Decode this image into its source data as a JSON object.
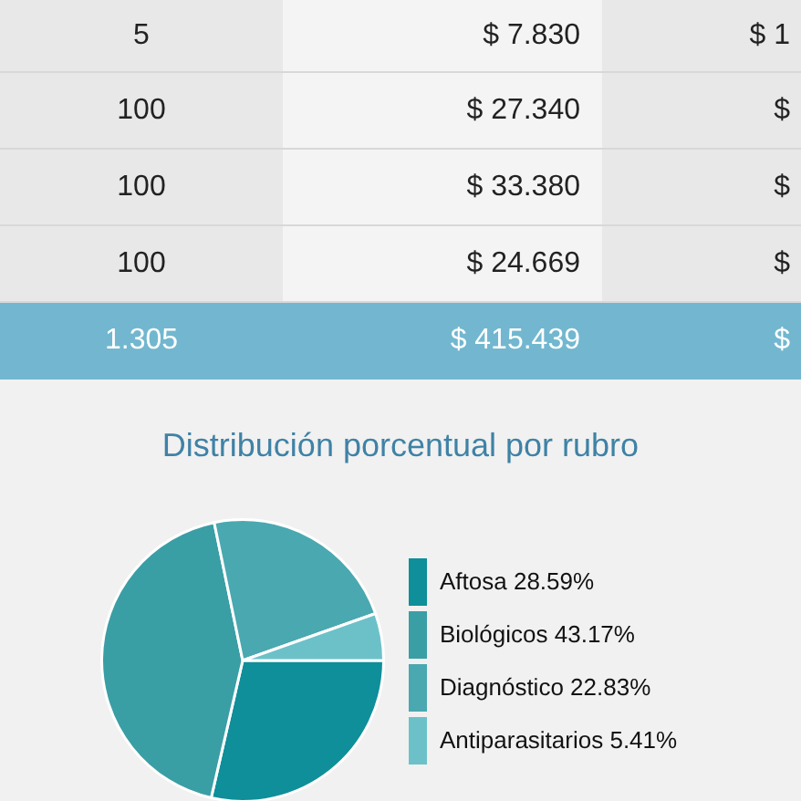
{
  "chart_data": [
    {
      "type": "other",
      "annotations": [
        "5",
        "$ 7.830",
        "$ 1",
        "100",
        "$ 27.340",
        "$",
        "100",
        "$ 33.380",
        "$",
        "100",
        "$ 24.669",
        "$",
        "1.305",
        "$ 415.439",
        "$"
      ]
    },
    {
      "type": "pie",
      "title": "Distribución porcentual por rubro",
      "categories": [
        "Aftosa 28.59%",
        "Biológicos 43.17%",
        "Diagnóstico 22.83%",
        "Antiparasitarios 5.41%"
      ],
      "values": [
        28.59,
        43.17,
        22.83,
        5.41
      ],
      "colors": [
        "#0e8f99",
        "#3a9ea5",
        "#4aa8b0",
        "#6cc1c8"
      ],
      "legend": "right"
    }
  ]
}
